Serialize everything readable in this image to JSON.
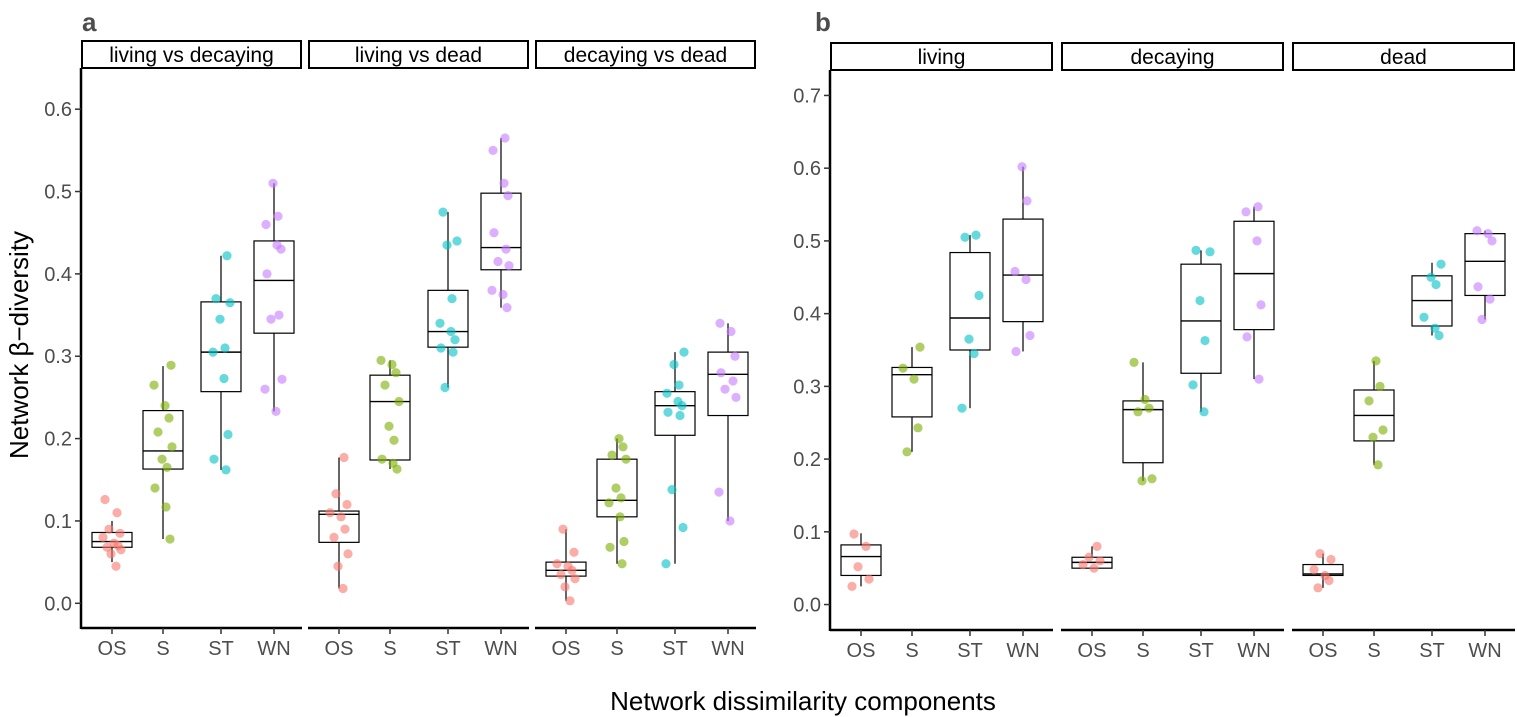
{
  "chart_data": [
    {
      "type": "box",
      "panel_label": "a",
      "ylabel": "Network β−diversity",
      "xlabel": "Network dissimilarity components",
      "ylim": [
        -0.03,
        0.65
      ],
      "yticks": [
        "0.0",
        "0.1",
        "0.2",
        "0.3",
        "0.4",
        "0.5",
        "0.6"
      ],
      "categories": [
        "OS",
        "S",
        "ST",
        "WN"
      ],
      "colors": {
        "OS": "#F8766D",
        "S": "#7CAE00",
        "ST": "#00BFC4",
        "WN": "#C77CFF"
      },
      "facets": [
        {
          "title": "living vs decaying",
          "boxes": [
            {
              "category": "OS",
              "min": 0.05,
              "q1": 0.068,
              "median": 0.075,
              "q3": 0.086,
              "max": 0.1,
              "points": [
                0.126,
                0.11,
                0.09,
                0.085,
                0.08,
                0.073,
                0.07,
                0.068,
                0.065,
                0.06,
                0.045
              ]
            },
            {
              "category": "S",
              "min": 0.078,
              "q1": 0.163,
              "median": 0.185,
              "q3": 0.234,
              "max": 0.288,
              "points": [
                0.289,
                0.265,
                0.24,
                0.225,
                0.208,
                0.19,
                0.175,
                0.165,
                0.14,
                0.117,
                0.078
              ]
            },
            {
              "category": "ST",
              "min": 0.162,
              "q1": 0.257,
              "median": 0.305,
              "q3": 0.366,
              "max": 0.422,
              "points": [
                0.422,
                0.37,
                0.365,
                0.345,
                0.31,
                0.305,
                0.273,
                0.205,
                0.175,
                0.162
              ]
            },
            {
              "category": "WN",
              "min": 0.233,
              "q1": 0.328,
              "median": 0.392,
              "q3": 0.44,
              "max": 0.51,
              "points": [
                0.51,
                0.47,
                0.46,
                0.435,
                0.43,
                0.4,
                0.35,
                0.345,
                0.272,
                0.26,
                0.233
              ]
            }
          ]
        },
        {
          "title": "living vs dead",
          "boxes": [
            {
              "category": "OS",
              "min": 0.018,
              "q1": 0.074,
              "median": 0.108,
              "q3": 0.112,
              "max": 0.177,
              "points": [
                0.177,
                0.133,
                0.12,
                0.11,
                0.105,
                0.09,
                0.08,
                0.06,
                0.045,
                0.018
              ]
            },
            {
              "category": "S",
              "min": 0.163,
              "q1": 0.174,
              "median": 0.245,
              "q3": 0.277,
              "max": 0.295,
              "points": [
                0.295,
                0.29,
                0.28,
                0.265,
                0.245,
                0.215,
                0.198,
                0.175,
                0.17,
                0.163
              ]
            },
            {
              "category": "ST",
              "min": 0.262,
              "q1": 0.311,
              "median": 0.33,
              "q3": 0.38,
              "max": 0.475,
              "points": [
                0.475,
                0.44,
                0.435,
                0.37,
                0.34,
                0.33,
                0.32,
                0.31,
                0.305,
                0.262
              ]
            },
            {
              "category": "WN",
              "min": 0.359,
              "q1": 0.405,
              "median": 0.432,
              "q3": 0.498,
              "max": 0.565,
              "points": [
                0.565,
                0.55,
                0.51,
                0.495,
                0.45,
                0.43,
                0.415,
                0.41,
                0.38,
                0.375,
                0.359
              ]
            }
          ]
        },
        {
          "title": "decaying vs dead",
          "boxes": [
            {
              "category": "OS",
              "min": 0.003,
              "q1": 0.033,
              "median": 0.04,
              "q3": 0.05,
              "max": 0.09,
              "points": [
                0.09,
                0.062,
                0.048,
                0.045,
                0.04,
                0.035,
                0.03,
                0.02,
                0.003
              ]
            },
            {
              "category": "S",
              "min": 0.048,
              "q1": 0.105,
              "median": 0.125,
              "q3": 0.175,
              "max": 0.2,
              "points": [
                0.2,
                0.19,
                0.18,
                0.175,
                0.14,
                0.128,
                0.122,
                0.105,
                0.075,
                0.068,
                0.048
              ]
            },
            {
              "category": "ST",
              "min": 0.048,
              "q1": 0.204,
              "median": 0.24,
              "q3": 0.257,
              "max": 0.305,
              "points": [
                0.305,
                0.29,
                0.265,
                0.255,
                0.245,
                0.24,
                0.232,
                0.228,
                0.138,
                0.092,
                0.048
              ]
            },
            {
              "category": "WN",
              "min": 0.1,
              "q1": 0.228,
              "median": 0.278,
              "q3": 0.305,
              "max": 0.34,
              "points": [
                0.34,
                0.33,
                0.3,
                0.28,
                0.27,
                0.26,
                0.25,
                0.135,
                0.1
              ]
            }
          ]
        }
      ]
    },
    {
      "type": "box",
      "panel_label": "b",
      "ylabel": "",
      "ylim": [
        -0.035,
        0.735
      ],
      "yticks": [
        "0.0",
        "0.1",
        "0.2",
        "0.3",
        "0.4",
        "0.5",
        "0.6",
        "0.7"
      ],
      "categories": [
        "OS",
        "S",
        "ST",
        "WN"
      ],
      "colors": {
        "OS": "#F8766D",
        "S": "#7CAE00",
        "ST": "#00BFC4",
        "WN": "#C77CFF"
      },
      "facets": [
        {
          "title": "living",
          "boxes": [
            {
              "category": "OS",
              "min": 0.025,
              "q1": 0.04,
              "median": 0.066,
              "q3": 0.082,
              "max": 0.098,
              "points": [
                0.097,
                0.08,
                0.052,
                0.035,
                0.025
              ]
            },
            {
              "category": "S",
              "min": 0.21,
              "q1": 0.258,
              "median": 0.316,
              "q3": 0.326,
              "max": 0.354,
              "points": [
                0.354,
                0.325,
                0.31,
                0.243,
                0.21
              ]
            },
            {
              "category": "ST",
              "min": 0.27,
              "q1": 0.35,
              "median": 0.394,
              "q3": 0.484,
              "max": 0.508,
              "points": [
                0.508,
                0.505,
                0.425,
                0.365,
                0.345,
                0.27
              ]
            },
            {
              "category": "WN",
              "min": 0.348,
              "q1": 0.389,
              "median": 0.453,
              "q3": 0.53,
              "max": 0.602,
              "points": [
                0.602,
                0.555,
                0.458,
                0.447,
                0.37,
                0.348
              ]
            }
          ]
        },
        {
          "title": "decaying",
          "boxes": [
            {
              "category": "OS",
              "min": 0.05,
              "q1": 0.05,
              "median": 0.058,
              "q3": 0.065,
              "max": 0.08,
              "points": [
                0.08,
                0.065,
                0.06,
                0.055,
                0.05
              ]
            },
            {
              "category": "S",
              "min": 0.17,
              "q1": 0.195,
              "median": 0.268,
              "q3": 0.28,
              "max": 0.333,
              "points": [
                0.333,
                0.282,
                0.27,
                0.265,
                0.173,
                0.17
              ]
            },
            {
              "category": "ST",
              "min": 0.265,
              "q1": 0.318,
              "median": 0.39,
              "q3": 0.468,
              "max": 0.487,
              "points": [
                0.487,
                0.485,
                0.418,
                0.363,
                0.302,
                0.265
              ]
            },
            {
              "category": "WN",
              "min": 0.31,
              "q1": 0.378,
              "median": 0.455,
              "q3": 0.527,
              "max": 0.547,
              "points": [
                0.547,
                0.54,
                0.5,
                0.412,
                0.368,
                0.31
              ]
            }
          ]
        },
        {
          "title": "dead",
          "boxes": [
            {
              "category": "OS",
              "min": 0.023,
              "q1": 0.04,
              "median": 0.042,
              "q3": 0.055,
              "max": 0.07,
              "points": [
                0.07,
                0.062,
                0.048,
                0.04,
                0.033,
                0.023
              ]
            },
            {
              "category": "S",
              "min": 0.192,
              "q1": 0.225,
              "median": 0.26,
              "q3": 0.295,
              "max": 0.335,
              "points": [
                0.335,
                0.3,
                0.28,
                0.24,
                0.23,
                0.192
              ]
            },
            {
              "category": "ST",
              "min": 0.37,
              "q1": 0.383,
              "median": 0.418,
              "q3": 0.452,
              "max": 0.47,
              "points": [
                0.468,
                0.45,
                0.44,
                0.395,
                0.38,
                0.37
              ]
            },
            {
              "category": "WN",
              "min": 0.392,
              "q1": 0.425,
              "median": 0.472,
              "q3": 0.51,
              "max": 0.514,
              "points": [
                0.514,
                0.51,
                0.5,
                0.437,
                0.42,
                0.392
              ]
            }
          ]
        }
      ]
    }
  ]
}
